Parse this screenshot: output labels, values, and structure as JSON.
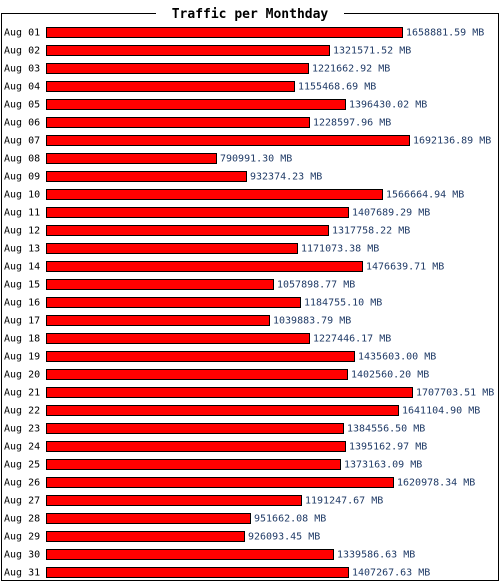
{
  "chart_data": {
    "type": "bar",
    "orientation": "horizontal",
    "title": "Traffic per Monthday",
    "unit": "MB",
    "bar_color": "#ff0000",
    "bar_outline": "#000000",
    "label_color": "#1f3a66",
    "categories": [
      "Aug 01",
      "Aug 02",
      "Aug 03",
      "Aug 04",
      "Aug 05",
      "Aug 06",
      "Aug 07",
      "Aug 08",
      "Aug 09",
      "Aug 10",
      "Aug 11",
      "Aug 12",
      "Aug 13",
      "Aug 14",
      "Aug 15",
      "Aug 16",
      "Aug 17",
      "Aug 18",
      "Aug 19",
      "Aug 20",
      "Aug 21",
      "Aug 22",
      "Aug 23",
      "Aug 24",
      "Aug 25",
      "Aug 26",
      "Aug 27",
      "Aug 28",
      "Aug 29",
      "Aug 30",
      "Aug 31"
    ],
    "values": [
      1658881.59,
      1321571.52,
      1221662.92,
      1155468.69,
      1396430.02,
      1228597.96,
      1692136.89,
      790991.3,
      932374.23,
      1566664.94,
      1407689.29,
      1317758.22,
      1171073.38,
      1476639.71,
      1057898.77,
      1184755.1,
      1039883.79,
      1227446.17,
      1435603.0,
      1402560.2,
      1707703.51,
      1641104.9,
      1384556.5,
      1395162.97,
      1373163.09,
      1620978.34,
      1191247.67,
      951662.08,
      926093.45,
      1339586.63,
      1407267.63
    ],
    "value_labels": [
      "1658881.59 MB",
      "1321571.52 MB",
      "1221662.92 MB",
      "1155468.69 MB",
      "1396430.02 MB",
      "1228597.96 MB",
      "1692136.89 MB",
      "790991.30 MB",
      "932374.23 MB",
      "1566664.94 MB",
      "1407689.29 MB",
      "1317758.22 MB",
      "1171073.38 MB",
      "1476639.71 MB",
      "1057898.77 MB",
      "1184755.10 MB",
      "1039883.79 MB",
      "1227446.17 MB",
      "1435603.00 MB",
      "1402560.20 MB",
      "1707703.51 MB",
      "1641104.90 MB",
      "1384556.50 MB",
      "1395162.97 MB",
      "1373163.09 MB",
      "1620978.34 MB",
      "1191247.67 MB",
      "951662.08 MB",
      "926093.45 MB",
      "1339586.63 MB",
      "1407267.63 MB"
    ],
    "grid": false,
    "legend": "none"
  }
}
